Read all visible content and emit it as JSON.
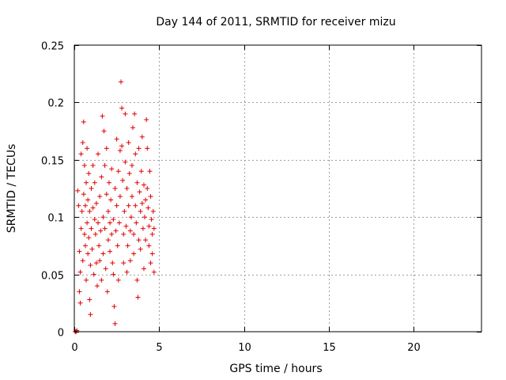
{
  "chart_data": {
    "type": "scatter",
    "title": "Day 144 of 2011, SRMTID for receiver mizu",
    "xlabel": "GPS time / hours",
    "ylabel": "SRMTID / TECUs",
    "xlim": [
      0,
      24
    ],
    "ylim": [
      0,
      0.25
    ],
    "xticks": [
      0,
      5,
      10,
      15,
      20
    ],
    "xtick_labels": [
      "0",
      "5",
      "10",
      "15",
      "20"
    ],
    "yticks": [
      0,
      0.05,
      0.1,
      0.15,
      0.2,
      0.25
    ],
    "ytick_labels": [
      "0",
      "0.05",
      "0.1",
      "0.15",
      "0.2",
      "0.25"
    ],
    "grid": true,
    "marker": "+",
    "color": "#e00000",
    "series": [
      {
        "name": "mizu",
        "points": [
          [
            0.05,
            0.0
          ],
          [
            0.1,
            0.0
          ],
          [
            0.15,
            0.001
          ],
          [
            0.2,
            0.123
          ],
          [
            0.25,
            0.11
          ],
          [
            0.3,
            0.07
          ],
          [
            0.3,
            0.035
          ],
          [
            0.35,
            0.025
          ],
          [
            0.35,
            0.052
          ],
          [
            0.4,
            0.09
          ],
          [
            0.4,
            0.155
          ],
          [
            0.45,
            0.105
          ],
          [
            0.5,
            0.165
          ],
          [
            0.5,
            0.062
          ],
          [
            0.55,
            0.183
          ],
          [
            0.55,
            0.12
          ],
          [
            0.6,
            0.145
          ],
          [
            0.6,
            0.085
          ],
          [
            0.65,
            0.075
          ],
          [
            0.65,
            0.11
          ],
          [
            0.7,
            0.13
          ],
          [
            0.7,
            0.045
          ],
          [
            0.75,
            0.16
          ],
          [
            0.75,
            0.095
          ],
          [
            0.8,
            0.068
          ],
          [
            0.8,
            0.115
          ],
          [
            0.85,
            0.082
          ],
          [
            0.85,
            0.138
          ],
          [
            0.9,
            0.028
          ],
          [
            0.9,
            0.105
          ],
          [
            0.95,
            0.015
          ],
          [
            0.95,
            0.058
          ],
          [
            1.0,
            0.09
          ],
          [
            1.0,
            0.125
          ],
          [
            1.05,
            0.072
          ],
          [
            1.1,
            0.108
          ],
          [
            1.1,
            0.145
          ],
          [
            1.15,
            0.05
          ],
          [
            1.2,
            0.098
          ],
          [
            1.2,
            0.13
          ],
          [
            1.25,
            0.085
          ],
          [
            1.3,
            0.06
          ],
          [
            1.3,
            0.112
          ],
          [
            1.35,
            0.04
          ],
          [
            1.4,
            0.155
          ],
          [
            1.4,
            0.095
          ],
          [
            1.45,
            0.075
          ],
          [
            1.5,
            0.118
          ],
          [
            1.5,
            0.062
          ],
          [
            1.55,
            0.088
          ],
          [
            1.6,
            0.135
          ],
          [
            1.6,
            0.045
          ],
          [
            1.65,
            0.188
          ],
          [
            1.7,
            0.1
          ],
          [
            1.7,
            0.068
          ],
          [
            1.75,
            0.175
          ],
          [
            1.8,
            0.145
          ],
          [
            1.8,
            0.09
          ],
          [
            1.85,
            0.055
          ],
          [
            1.9,
            0.16
          ],
          [
            1.9,
            0.12
          ],
          [
            1.95,
            0.035
          ],
          [
            2.0,
            0.08
          ],
          [
            2.0,
            0.105
          ],
          [
            2.05,
            0.13
          ],
          [
            2.1,
            0.07
          ],
          [
            2.1,
            0.095
          ],
          [
            2.15,
            0.115
          ],
          [
            2.2,
            0.085
          ],
          [
            2.2,
            0.142
          ],
          [
            2.25,
            0.06
          ],
          [
            2.3,
            0.098
          ],
          [
            2.3,
            0.05
          ],
          [
            2.35,
            0.022
          ],
          [
            2.4,
            0.007
          ],
          [
            2.4,
            0.125
          ],
          [
            2.45,
            0.088
          ],
          [
            2.5,
            0.168
          ],
          [
            2.5,
            0.11
          ],
          [
            2.55,
            0.075
          ],
          [
            2.6,
            0.14
          ],
          [
            2.6,
            0.045
          ],
          [
            2.65,
            0.095
          ],
          [
            2.7,
            0.158
          ],
          [
            2.7,
            0.118
          ],
          [
            2.75,
            0.218
          ],
          [
            2.8,
            0.195
          ],
          [
            2.8,
            0.162
          ],
          [
            2.85,
            0.132
          ],
          [
            2.9,
            0.085
          ],
          [
            2.9,
            0.06
          ],
          [
            2.95,
            0.105
          ],
          [
            3.0,
            0.19
          ],
          [
            3.0,
            0.148
          ],
          [
            3.05,
            0.092
          ],
          [
            3.1,
            0.052
          ],
          [
            3.1,
            0.125
          ],
          [
            3.15,
            0.075
          ],
          [
            3.2,
            0.11
          ],
          [
            3.2,
            0.165
          ],
          [
            3.25,
            0.138
          ],
          [
            3.3,
            0.088
          ],
          [
            3.3,
            0.062
          ],
          [
            3.35,
            0.1
          ],
          [
            3.4,
            0.145
          ],
          [
            3.4,
            0.118
          ],
          [
            3.45,
            0.178
          ],
          [
            3.5,
            0.085
          ],
          [
            3.5,
            0.068
          ],
          [
            3.55,
            0.19
          ],
          [
            3.6,
            0.155
          ],
          [
            3.6,
            0.11
          ],
          [
            3.65,
            0.095
          ],
          [
            3.7,
            0.13
          ],
          [
            3.7,
            0.045
          ],
          [
            3.75,
            0.03
          ],
          [
            3.8,
            0.08
          ],
          [
            3.8,
            0.16
          ],
          [
            3.85,
            0.122
          ],
          [
            3.9,
            0.105
          ],
          [
            3.9,
            0.072
          ],
          [
            3.95,
            0.14
          ],
          [
            4.0,
            0.112
          ],
          [
            4.0,
            0.17
          ],
          [
            4.05,
            0.09
          ],
          [
            4.1,
            0.128
          ],
          [
            4.1,
            0.055
          ],
          [
            4.15,
            0.1
          ],
          [
            4.2,
            0.115
          ],
          [
            4.2,
            0.08
          ],
          [
            4.25,
            0.185
          ],
          [
            4.3,
            0.16
          ],
          [
            4.3,
            0.125
          ],
          [
            4.35,
            0.108
          ],
          [
            4.4,
            0.092
          ],
          [
            4.4,
            0.075
          ],
          [
            4.45,
            0.14
          ],
          [
            4.5,
            0.118
          ],
          [
            4.5,
            0.06
          ],
          [
            4.55,
            0.098
          ],
          [
            4.6,
            0.085
          ],
          [
            4.6,
            0.068
          ],
          [
            4.65,
            0.105
          ],
          [
            4.7,
            0.052
          ],
          [
            4.7,
            0.09
          ]
        ]
      }
    ]
  }
}
